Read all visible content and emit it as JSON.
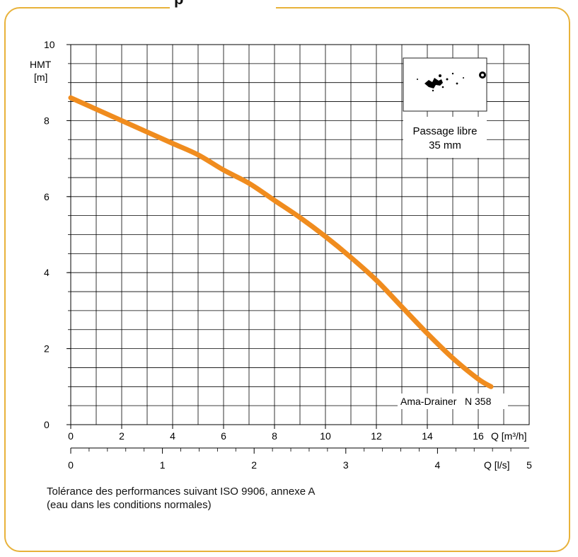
{
  "title_fragment": "p",
  "chart_data": {
    "type": "line",
    "series": [
      {
        "name": "Ama-Drainer N 358",
        "x": [
          0,
          1,
          2,
          3,
          4,
          5,
          6,
          7,
          8,
          9,
          10,
          11,
          12,
          13,
          14,
          15,
          16,
          16.5
        ],
        "y": [
          8.6,
          8.3,
          8.0,
          7.7,
          7.4,
          7.1,
          6.7,
          6.35,
          5.9,
          5.45,
          4.95,
          4.4,
          3.8,
          3.1,
          2.4,
          1.75,
          1.2,
          1.0
        ]
      }
    ],
    "ylabel_line1": "HMT",
    "ylabel_line2": "[m]",
    "ylim": [
      0,
      10
    ],
    "yticks": [
      "0",
      "2",
      "4",
      "6",
      "8",
      "10"
    ],
    "xlim": [
      0,
      18
    ],
    "xlabel_top": "Q [m³/h]",
    "xticks_top": [
      "0",
      "2",
      "4",
      "6",
      "8",
      "10",
      "12",
      "14",
      "16"
    ],
    "xlabel_bottom": "Q [l/s]",
    "xlim_bottom_ls": [
      0,
      5
    ],
    "xticks_bottom": [
      "0",
      "1",
      "2",
      "3",
      "4",
      "5"
    ],
    "grid": true,
    "curve_color": "#f08c1e",
    "annotation_inset_line1": "Passage libre",
    "annotation_inset_line2": "35 mm",
    "series_label": "Ama-Drainer   N 358"
  },
  "caption_line1": "Tolérance des performances suivant ISO 9906, annexe A",
  "caption_line2": "(eau dans les conditions normales)"
}
